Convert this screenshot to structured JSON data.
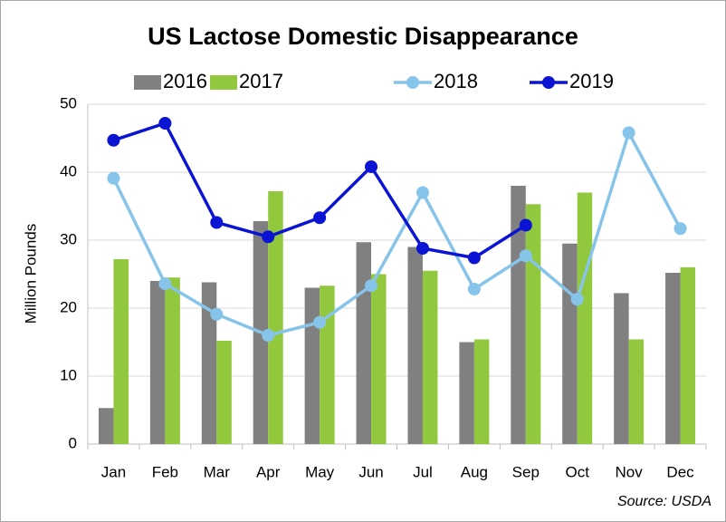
{
  "chart_data": {
    "type": "combo",
    "title": "US Lactose Domestic Disappearance",
    "y_label": "Million Pounds",
    "source": "Source: USDA",
    "categories": [
      "Jan",
      "Feb",
      "Mar",
      "Apr",
      "May",
      "Jun",
      "Jul",
      "Aug",
      "Sep",
      "Oct",
      "Nov",
      "Dec"
    ],
    "series": [
      {
        "name": "2016",
        "type": "bar",
        "color": "#808080",
        "values": [
          5.3,
          24,
          23.8,
          32.8,
          23,
          29.7,
          29,
          15,
          38,
          29.5,
          22.2,
          25.2
        ]
      },
      {
        "name": "2017",
        "type": "bar",
        "color": "#92c83e",
        "values": [
          27.2,
          24.5,
          15.2,
          37.2,
          23.3,
          25,
          25.5,
          15.4,
          35.3,
          37,
          15.4,
          26
        ]
      },
      {
        "name": "2018",
        "type": "line",
        "color": "#87c4ea",
        "values": [
          39.1,
          23.6,
          19.1,
          16,
          17.9,
          23.3,
          37,
          22.8,
          27.7,
          21.3,
          45.8,
          31.7
        ]
      },
      {
        "name": "2019",
        "type": "line",
        "color": "#0a14d2",
        "values": [
          44.7,
          47.2,
          32.6,
          30.5,
          33.3,
          40.8,
          28.8,
          27.4,
          32.2,
          null,
          null,
          null
        ]
      }
    ],
    "ylim": [
      0,
      50
    ],
    "yticks": [
      0,
      10,
      20,
      30,
      40,
      50
    ],
    "grid": true,
    "legend": "top"
  }
}
